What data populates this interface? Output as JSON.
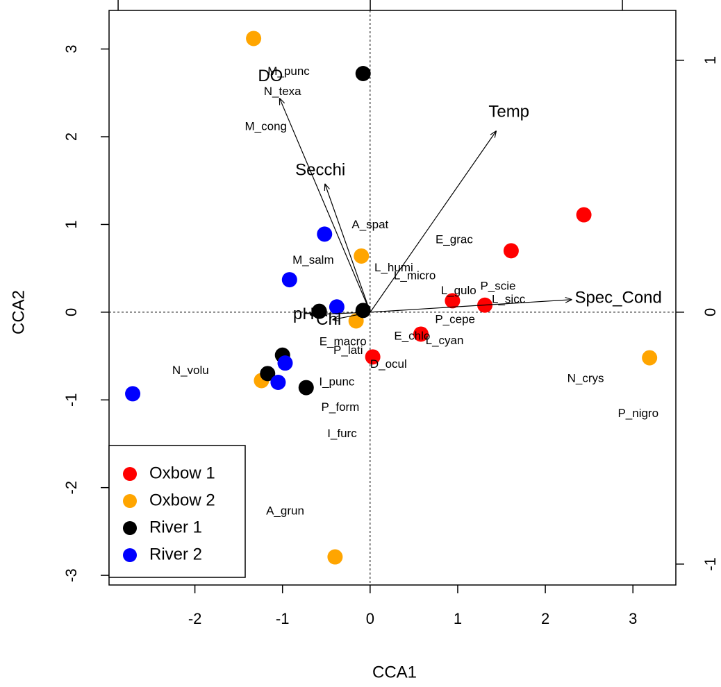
{
  "chart_data": {
    "type": "scatter",
    "xlabel": "CCA1",
    "ylabel": "CCA2",
    "xlim": [
      -2.98,
      3.49
    ],
    "ylim": [
      -3.11,
      3.44
    ],
    "xticks": [
      -2,
      -1,
      0,
      1,
      2,
      3
    ],
    "yticks": [
      -3,
      -2,
      -1,
      0,
      1,
      2,
      3
    ],
    "x2lim": [
      -1.036,
      1.212
    ],
    "y2lim": [
      -1.083,
      1.198
    ],
    "x2ticks": [
      -1,
      0,
      1
    ],
    "y2ticks": [
      -1,
      0,
      1
    ],
    "legend": "bottom-left",
    "series": [
      {
        "name": "Oxbow 1",
        "color": "#ff0000",
        "x": [
          2.44,
          1.61,
          0.94,
          1.31,
          0.58,
          0.03
        ],
        "y": [
          1.11,
          0.7,
          0.13,
          0.08,
          -0.25,
          -0.51
        ]
      },
      {
        "name": "Oxbow 2",
        "color": "#ffa500",
        "x": [
          -1.33,
          -0.1,
          3.19,
          -1.24,
          -0.4,
          -0.16
        ],
        "y": [
          3.12,
          0.64,
          -0.52,
          -0.78,
          -2.79,
          -0.1
        ]
      },
      {
        "name": "River 1",
        "color": "#000000",
        "x": [
          -0.08,
          -0.58,
          -0.08,
          -1.0,
          -1.17,
          -0.73
        ],
        "y": [
          2.72,
          0.01,
          0.02,
          -0.49,
          -0.7,
          -0.86
        ]
      },
      {
        "name": "River 2",
        "color": "#0000ff",
        "x": [
          -0.52,
          -0.92,
          -0.38,
          -0.97,
          -1.05,
          -2.71
        ],
        "y": [
          0.89,
          0.37,
          0.06,
          -0.58,
          -0.8,
          -0.93
        ]
      }
    ],
    "species": {
      "labels": [
        "M_punc",
        "N_texa",
        "M_cong",
        "A_spat",
        "E_grac",
        "M_salm",
        "L_humi",
        "L_micro",
        "L_gulo",
        "P_scie",
        "L_sicc",
        "N_crys",
        "P_nigro",
        "N_volu",
        "I_punc",
        "P_form",
        "I_furc",
        "A_grun",
        "D_ocul",
        "E_chlo",
        "L_cyan",
        "P_cepe",
        "E_macro",
        "P_lati"
      ],
      "x": [
        -0.93,
        -1.0,
        -1.19,
        0.0,
        0.96,
        -0.65,
        0.27,
        0.51,
        1.01,
        1.46,
        1.58,
        2.46,
        3.06,
        -2.05,
        -0.38,
        -0.34,
        -0.32,
        -0.97,
        0.21,
        0.48,
        0.85,
        0.97,
        -0.31,
        -0.25
      ],
      "y": [
        2.74,
        2.51,
        2.11,
        0.99,
        0.82,
        0.59,
        0.5,
        0.41,
        0.24,
        0.29,
        0.14,
        -0.76,
        -1.16,
        -0.67,
        -0.8,
        -1.09,
        -1.39,
        -2.27,
        -0.6,
        -0.28,
        -0.33,
        -0.09,
        -0.34,
        -0.44
      ]
    },
    "biplot": {
      "labels": [
        "DO",
        "Temp",
        "Secchi",
        "Spec_Cond",
        "pH",
        "Chl"
      ],
      "x": [
        -0.36,
        0.5,
        -0.18,
        0.8,
        -0.24,
        -0.15
      ],
      "y": [
        0.85,
        0.72,
        0.51,
        0.05,
        -0.01,
        -0.03
      ]
    }
  }
}
